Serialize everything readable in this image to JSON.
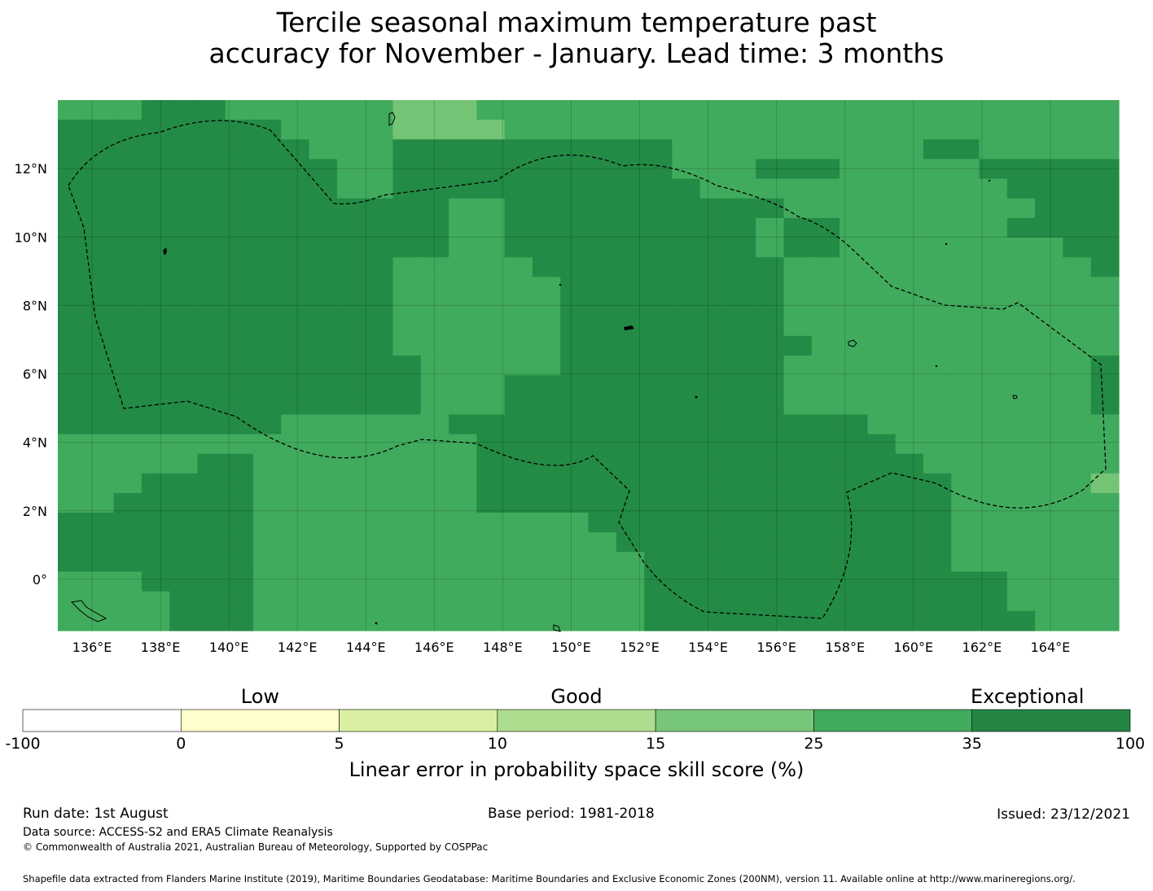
{
  "title": {
    "line1": "Tercile seasonal maximum temperature past",
    "line2": "accuracy for November - January. Lead time: 3 months"
  },
  "map": {
    "lon_ticks": [
      "136°E",
      "138°E",
      "140°E",
      "142°E",
      "144°E",
      "146°E",
      "148°E",
      "150°E",
      "152°E",
      "154°E",
      "156°E",
      "158°E",
      "160°E",
      "162°E",
      "164°E"
    ],
    "lat_ticks": [
      "12°N",
      "10°N",
      "8°N",
      "6°N",
      "4°N",
      "2°N",
      "0°"
    ],
    "extent": {
      "lon_min": 135,
      "lon_max": 166,
      "lat_min": -1.5,
      "lat_max": 14
    },
    "grid_resolution_deg": 0.833,
    "categories_by_row_north_to_south": [
      "BBBCCCBBBBBBAAABBBBBBBBBBBBBBBBBBBBBBB",
      "CCCCCCCCBBBBAAAABBBBBBBBBBBBBBBBBBBBBB",
      "CCCCCCCCCBBBCCCCCCCCCCBBBBBBBBBCCBBBBB",
      "CCCCCCCCCCBBCCCCCCCCCCBBBCCCBBBBBCCCCC",
      "CCCCCCCCCCBBCCCCCCCCCCCBBBBBBBBBBBCCCC",
      "CCCCCCCCCCCCCCBBCCCCCCCCCCBBBBBBBBBCCC",
      "CCCCCCCCCCCCCCBBCCCCCCCCCBCCBBBBBBCCCC",
      "CCCCCCCCCCCCCCBBCCCCCCCCCBCCBBBBBBBBCC",
      "CCCCCCCCCCCCBBBBBCCCCCCCCCBBBBBBBBBBBC",
      "CCCCCCCCCCCCBBBBBBCCCCCCCCBBBBBBBBBBBB",
      "CCCCCCCCCCCCBBBBBBCCCCCCCCBBBBBBBBBBBB",
      "CCCCCCCCCCCCBBBBBBCCCCCCCCBBBBBBBBBBBB",
      "CCCCCCCCCCCCBBBBBBCCCCCCCCCBBBBBBBBBBB",
      "CCCCCCCCCCCCCBBBBBCCCCCCCCBBBBBBBBBBBC",
      "CCCCCCCCCCCCCBBBCCCCCCCCCCBBBBBBBBBBBC",
      "CCCCCCCCCCCCCBBBCCCCCCCCCCBBBBBBBBBBBC",
      "CCCCCCCCBBBBBBCCCCCCCCCCCCCCCBBBBBBBBB",
      "BBBBBBBBBBBBBBBCCCCCCCCCCCCCCCBBBBBBBB",
      "BBBBBCCBBBBBBBBCCCCCCCCCCCCCCCCBBBBBBB",
      "BBBCCCCBBBBBBBBCCCCCCCCCCCCCCCCCBBBBBA",
      "BBCCCCCBBBBBBBBCCCCCCCCCCCCCCCCCBBBBBB",
      "CCCCCCCBBBBBBBBBBBBCCCCCCCCCCCCCBBBBBB",
      "CCCCCCCBBBBBBBBBBBBBCCCCCCCCCCCCBBBBBB",
      "CCCCCCCBBBBBBBBBBBBBBCCCCCCCCCCCBBBBBB",
      "BBBCCCCBBBBBBBBBBBBBBCCCCCCCCCCCCCBBBB",
      "BBBBCCCBBBBBBBBBBBBBBCCCCCCCCCCCCCBBBB",
      "BBBBCCCBBBBBBBBBBBBBBCCCCCCCCCCCCCCBBB"
    ],
    "palette": {
      "A": "#74c476",
      "B": "#41ab5d",
      "C": "#238b45"
    }
  },
  "legend": {
    "category_labels": [
      "Low",
      "Good",
      "Exceptional"
    ],
    "tick_labels": [
      "-100",
      "0",
      "5",
      "10",
      "15",
      "25",
      "35",
      "100"
    ],
    "colors": [
      "#ffffff",
      "#ffffcc",
      "#d9f0a3",
      "#addd8e",
      "#78c679",
      "#41ab5d",
      "#238443"
    ],
    "axis_label": "Linear error in probability space skill score (%)"
  },
  "footer": {
    "run_date": "Run date: 1st August",
    "base_period": "Base period: 1981-2018",
    "issued": "Issued: 23/12/2021",
    "data_source": "Data source: ACCESS-S2 and ERA5 Climate Reanalysis",
    "copyright": "© Commonwealth of Australia 2021, Australian Bureau of Meteorology, Supported by COSPPac",
    "shapefile": "Shapefile data extracted from Flanders Marine Institute (2019), Maritime Boundaries Geodatabase: Maritime Boundaries and Exclusive Economic Zones (200NM), version 11. Available online at http://www.marineregions.org/."
  }
}
